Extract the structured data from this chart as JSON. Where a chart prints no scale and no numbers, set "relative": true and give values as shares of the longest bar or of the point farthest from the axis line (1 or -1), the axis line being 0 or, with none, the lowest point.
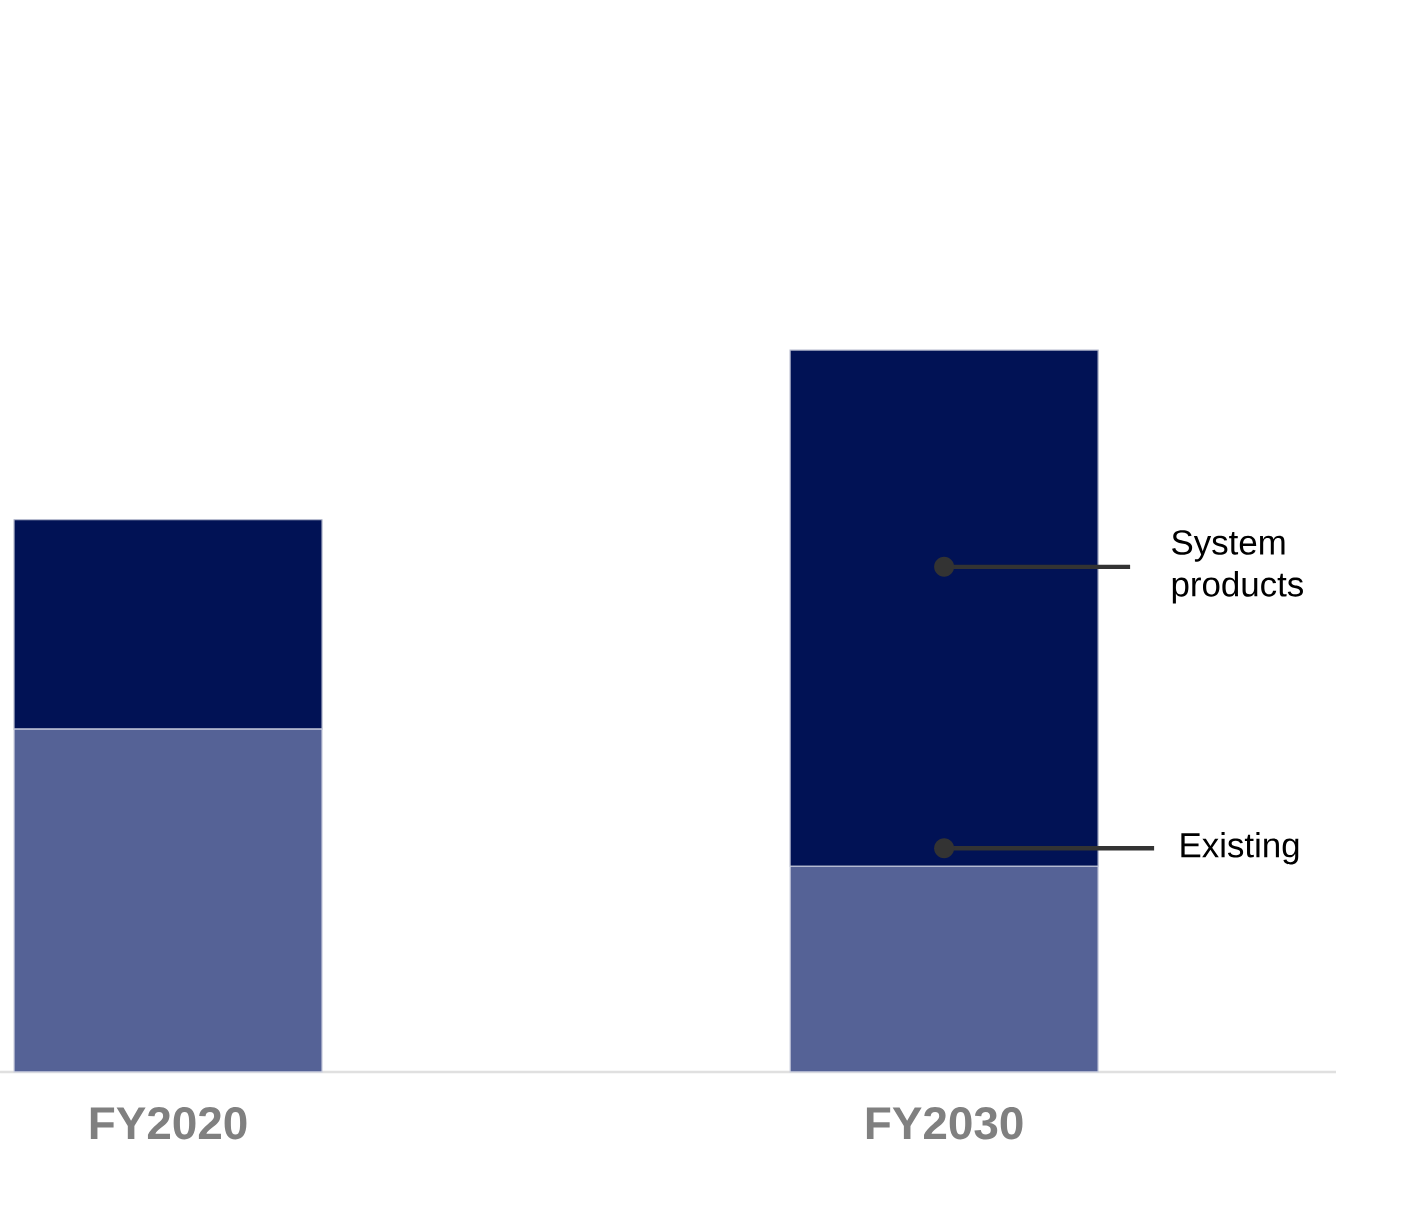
{
  "chart_data": {
    "type": "bar",
    "stacked": true,
    "relative": true,
    "categories": [
      "FY2020",
      "FY2030"
    ],
    "series": [
      {
        "name": "Existing",
        "color": "#556296",
        "values": [
          0.475,
          0.285
        ]
      },
      {
        "name": "System products",
        "color": "#011255",
        "values": [
          0.29,
          0.715
        ]
      }
    ]
  }
}
